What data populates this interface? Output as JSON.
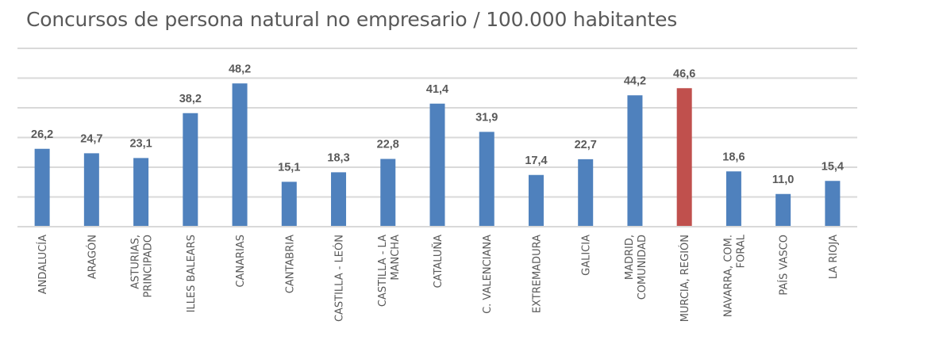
{
  "chart_data": {
    "type": "bar",
    "title": "Concursos de persona natural no empresario / 100.000 habitantes",
    "categories": [
      "ANDALUCÍA",
      "ARAGÓN",
      "ASTURIAS, PRINCIPADO",
      "ILLES BALEARS",
      "CANARIAS",
      "CANTABRIA",
      "CASTILLA - LEÓN",
      "CASTILLA - LA MANCHA",
      "CATALUÑA",
      "C. VALENCIANA",
      "EXTREMADURA",
      "GALICIA",
      "MADRID, COMUNIDAD",
      "MURCIA, REGIÓN",
      "NAVARRA, COM. FORAL",
      "PAÍS VASCO",
      "LA RIOJA"
    ],
    "category_lines": [
      [
        "ANDALUCÍA"
      ],
      [
        "ARAGÓN"
      ],
      [
        "ASTURIAS,",
        "PRINCIPADO"
      ],
      [
        "ILLES BALEARS"
      ],
      [
        "CANARIAS"
      ],
      [
        "CANTABRIA"
      ],
      [
        "CASTILLA - LEÓN"
      ],
      [
        "CASTILLA - LA",
        "MANCHA"
      ],
      [
        "CATALUÑA"
      ],
      [
        "C. VALENCIANA"
      ],
      [
        "EXTREMADURA"
      ],
      [
        "GALICIA"
      ],
      [
        "MADRID,",
        "COMUNIDAD"
      ],
      [
        "MURCIA, REGIÓN"
      ],
      [
        "NAVARRA, COM.",
        "FORAL"
      ],
      [
        "PAÍS VASCO"
      ],
      [
        "LA RIOJA"
      ]
    ],
    "values": [
      26.2,
      24.7,
      23.1,
      38.2,
      48.2,
      15.1,
      18.3,
      22.8,
      41.4,
      31.9,
      17.4,
      22.7,
      44.2,
      46.6,
      18.6,
      11.0,
      15.4
    ],
    "data_labels": [
      "26,2",
      "24,7",
      "23,1",
      "38,2",
      "48,2",
      "15,1",
      "18,3",
      "22,8",
      "41,4",
      "31,9",
      "17,4",
      "22,7",
      "44,2",
      "46,6",
      "18,6",
      "11,0",
      "15,4"
    ],
    "ylim": [
      0,
      60
    ],
    "ytick_step": 10,
    "y_tick_labels_shown": false,
    "grid": true,
    "legend": "none",
    "colors": {
      "bar": "#4f81bd",
      "highlight": "#c0504d",
      "highlight_category": "MURCIA, REGIÓN"
    },
    "xlabel": "",
    "ylabel": ""
  }
}
